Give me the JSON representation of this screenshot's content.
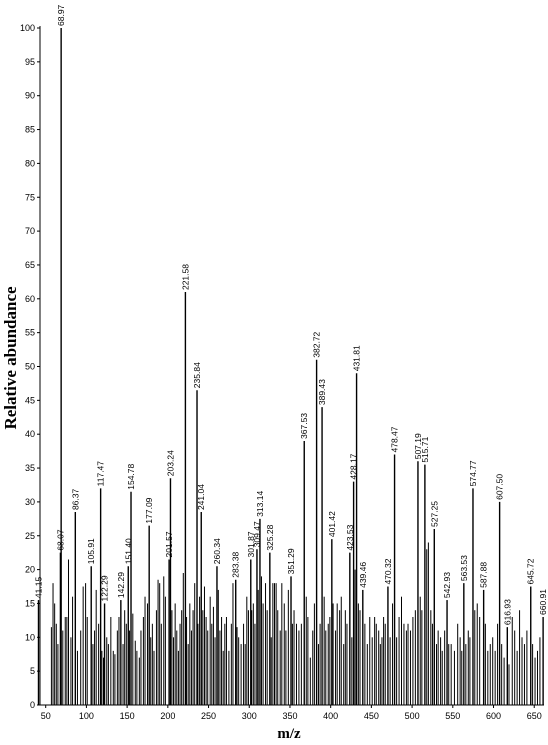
{
  "chart_data": {
    "type": "bar",
    "xlabel": "m/z",
    "ylabel": "Relative abundance",
    "xlim": [
      43,
      662
    ],
    "ylim": [
      0,
      100
    ],
    "x_ticks": [
      50,
      100,
      150,
      200,
      250,
      300,
      350,
      400,
      450,
      500,
      550,
      600,
      650
    ],
    "y_ticks": [
      0,
      5,
      10,
      15,
      20,
      25,
      30,
      35,
      40,
      45,
      50,
      55,
      60,
      65,
      70,
      75,
      80,
      85,
      90,
      95,
      100
    ],
    "x_tick_labels": [
      "50",
      "100",
      "150",
      "200",
      "250",
      "300",
      "350",
      "400",
      "450",
      "500",
      "550",
      "600",
      "650"
    ],
    "y_tick_labels": [
      "0",
      "5",
      "10",
      "15",
      "20",
      "25",
      "30",
      "35",
      "40",
      "45",
      "50",
      "55",
      "60",
      "65",
      "70",
      "75",
      "80",
      "85",
      "90",
      "95",
      "100"
    ],
    "grid": false,
    "labeled_peaks": [
      {
        "x": 41.15,
        "y": 15.5,
        "label": "41.15"
      },
      {
        "x": 68.07,
        "y": 22.5,
        "label": "68.07"
      },
      {
        "x": 68.97,
        "y": 100,
        "label": "68.97"
      },
      {
        "x": 86.37,
        "y": 28.5,
        "label": "86.37"
      },
      {
        "x": 105.91,
        "y": 20.5,
        "label": "105.91"
      },
      {
        "x": 117.47,
        "y": 32,
        "label": "117.47"
      },
      {
        "x": 122.29,
        "y": 15,
        "label": "122.29"
      },
      {
        "x": 142.29,
        "y": 15.5,
        "label": "142.29"
      },
      {
        "x": 151.4,
        "y": 20.5,
        "label": "151.40"
      },
      {
        "x": 154.78,
        "y": 31.5,
        "label": "154.78"
      },
      {
        "x": 177.09,
        "y": 26.5,
        "label": "177.09"
      },
      {
        "x": 201.57,
        "y": 21.5,
        "label": "201.57"
      },
      {
        "x": 203.24,
        "y": 33.5,
        "label": "203.24"
      },
      {
        "x": 221.58,
        "y": 61,
        "label": "221.58"
      },
      {
        "x": 235.84,
        "y": 46.5,
        "label": "235.84"
      },
      {
        "x": 241.04,
        "y": 28.5,
        "label": "241.04"
      },
      {
        "x": 260.34,
        "y": 20.5,
        "label": "260.34"
      },
      {
        "x": 283.38,
        "y": 18.5,
        "label": "283.38"
      },
      {
        "x": 301.87,
        "y": 21.5,
        "label": "301.87"
      },
      {
        "x": 309.47,
        "y": 23,
        "label": "309.47"
      },
      {
        "x": 313.14,
        "y": 27.5,
        "label": "313.14"
      },
      {
        "x": 325.28,
        "y": 22.5,
        "label": "325.28"
      },
      {
        "x": 351.29,
        "y": 19,
        "label": "351.29"
      },
      {
        "x": 367.53,
        "y": 39,
        "label": "367.53"
      },
      {
        "x": 382.72,
        "y": 51,
        "label": "382.72"
      },
      {
        "x": 389.43,
        "y": 44,
        "label": "389.43"
      },
      {
        "x": 401.42,
        "y": 24.5,
        "label": "401.42"
      },
      {
        "x": 423.53,
        "y": 22.5,
        "label": "423.53"
      },
      {
        "x": 428.17,
        "y": 33,
        "label": "428.17"
      },
      {
        "x": 431.81,
        "y": 49,
        "label": "431.81"
      },
      {
        "x": 439.46,
        "y": 17,
        "label": "439.46"
      },
      {
        "x": 470.32,
        "y": 17.5,
        "label": "470.32"
      },
      {
        "x": 478.47,
        "y": 37,
        "label": "478.47"
      },
      {
        "x": 507.19,
        "y": 36,
        "label": "507.19"
      },
      {
        "x": 515.71,
        "y": 35.5,
        "label": "515.71"
      },
      {
        "x": 527.25,
        "y": 26,
        "label": "527.25"
      },
      {
        "x": 542.93,
        "y": 15.5,
        "label": "542.93"
      },
      {
        "x": 563.53,
        "y": 18,
        "label": "563.53"
      },
      {
        "x": 574.77,
        "y": 32,
        "label": "574.77"
      },
      {
        "x": 587.88,
        "y": 17,
        "label": "587.88"
      },
      {
        "x": 607.5,
        "y": 30,
        "label": "607.50"
      },
      {
        "x": 616.93,
        "y": 11.5,
        "label": "616.93"
      },
      {
        "x": 645.72,
        "y": 17.5,
        "label": "645.72"
      },
      {
        "x": 660.91,
        "y": 13,
        "label": "660.91"
      }
    ],
    "minor_peaks": [
      [
        57,
        11.5
      ],
      [
        59,
        18
      ],
      [
        61,
        15
      ],
      [
        63,
        12
      ],
      [
        65,
        9
      ],
      [
        71,
        11
      ],
      [
        74,
        13
      ],
      [
        76,
        13
      ],
      [
        78,
        21.5
      ],
      [
        81,
        10
      ],
      [
        83,
        16
      ],
      [
        89,
        8
      ],
      [
        93,
        11
      ],
      [
        96,
        17.5
      ],
      [
        99,
        18
      ],
      [
        101,
        13
      ],
      [
        108,
        9
      ],
      [
        110,
        11
      ],
      [
        112,
        17
      ],
      [
        115,
        12
      ],
      [
        119,
        8
      ],
      [
        121,
        7
      ],
      [
        125,
        10
      ],
      [
        127,
        9
      ],
      [
        130,
        13
      ],
      [
        133,
        8
      ],
      [
        135,
        7.5
      ],
      [
        138,
        11
      ],
      [
        140,
        13
      ],
      [
        145,
        9
      ],
      [
        147,
        14
      ],
      [
        149,
        12
      ],
      [
        153,
        11
      ],
      [
        157,
        13.5
      ],
      [
        160,
        9.5
      ],
      [
        162,
        8
      ],
      [
        165,
        7
      ],
      [
        167,
        11
      ],
      [
        170,
        13
      ],
      [
        172,
        16
      ],
      [
        175,
        15
      ],
      [
        179,
        10
      ],
      [
        181,
        12
      ],
      [
        183,
        8
      ],
      [
        186,
        14
      ],
      [
        188,
        18.5
      ],
      [
        190,
        18
      ],
      [
        192,
        12
      ],
      [
        195,
        19
      ],
      [
        197,
        16
      ],
      [
        205,
        14
      ],
      [
        207,
        10
      ],
      [
        209,
        15
      ],
      [
        211,
        11
      ],
      [
        213,
        8
      ],
      [
        215,
        12
      ],
      [
        217,
        14
      ],
      [
        219,
        19.5
      ],
      [
        223,
        13
      ],
      [
        225,
        9
      ],
      [
        227,
        15
      ],
      [
        229,
        11
      ],
      [
        231,
        14
      ],
      [
        233,
        18
      ],
      [
        237,
        12
      ],
      [
        239,
        16
      ],
      [
        243,
        14
      ],
      [
        245,
        17.5
      ],
      [
        247,
        13
      ],
      [
        249,
        11
      ],
      [
        252,
        16
      ],
      [
        254,
        12
      ],
      [
        256,
        14.5
      ],
      [
        258,
        10
      ],
      [
        262,
        17
      ],
      [
        264,
        11
      ],
      [
        266,
        13
      ],
      [
        268,
        8
      ],
      [
        270,
        12
      ],
      [
        272,
        13
      ],
      [
        275,
        8
      ],
      [
        278,
        12
      ],
      [
        280,
        18
      ],
      [
        285,
        11.5
      ],
      [
        287,
        10
      ],
      [
        290,
        9
      ],
      [
        293,
        12
      ],
      [
        295,
        9
      ],
      [
        297,
        16
      ],
      [
        299,
        14
      ],
      [
        303,
        14
      ],
      [
        305,
        15
      ],
      [
        307,
        12
      ],
      [
        311,
        17
      ],
      [
        315,
        19
      ],
      [
        317,
        15
      ],
      [
        320,
        18
      ],
      [
        322,
        14
      ],
      [
        327,
        10
      ],
      [
        329,
        18
      ],
      [
        331,
        18
      ],
      [
        333,
        18
      ],
      [
        335,
        14
      ],
      [
        338,
        11
      ],
      [
        340,
        18
      ],
      [
        343,
        15
      ],
      [
        345,
        11
      ],
      [
        348,
        17
      ],
      [
        353,
        12
      ],
      [
        355,
        14
      ],
      [
        358,
        12
      ],
      [
        361,
        11
      ],
      [
        364,
        12
      ],
      [
        370,
        16
      ],
      [
        372,
        13
      ],
      [
        375,
        7
      ],
      [
        378,
        11
      ],
      [
        380,
        15
      ],
      [
        385,
        9
      ],
      [
        387,
        12
      ],
      [
        392,
        16
      ],
      [
        394,
        11
      ],
      [
        397,
        12
      ],
      [
        399,
        13
      ],
      [
        403,
        15
      ],
      [
        406,
        11
      ],
      [
        408,
        15
      ],
      [
        411,
        14
      ],
      [
        413,
        16
      ],
      [
        416,
        9
      ],
      [
        418,
        14
      ],
      [
        420,
        12
      ],
      [
        426,
        10
      ],
      [
        430,
        20
      ],
      [
        434,
        15
      ],
      [
        436,
        14
      ],
      [
        442,
        12
      ],
      [
        445,
        9
      ],
      [
        448,
        13
      ],
      [
        451,
        10
      ],
      [
        454,
        13
      ],
      [
        456,
        12
      ],
      [
        459,
        11
      ],
      [
        461,
        9
      ],
      [
        463,
        10
      ],
      [
        465,
        13
      ],
      [
        467,
        12
      ],
      [
        473,
        10
      ],
      [
        476,
        15
      ],
      [
        481,
        10
      ],
      [
        484,
        13
      ],
      [
        487,
        16
      ],
      [
        490,
        12
      ],
      [
        493,
        11
      ],
      [
        495,
        12
      ],
      [
        498,
        11
      ],
      [
        501,
        13
      ],
      [
        504,
        14
      ],
      [
        510,
        16
      ],
      [
        512,
        14
      ],
      [
        518,
        23
      ],
      [
        520,
        24
      ],
      [
        523,
        14
      ],
      [
        525,
        12
      ],
      [
        530,
        9
      ],
      [
        532,
        11
      ],
      [
        535,
        10
      ],
      [
        537,
        8
      ],
      [
        540,
        11
      ],
      [
        545,
        9
      ],
      [
        548,
        9
      ],
      [
        552,
        8
      ],
      [
        556,
        12
      ],
      [
        559,
        10
      ],
      [
        561,
        8
      ],
      [
        566,
        9
      ],
      [
        569,
        11
      ],
      [
        571,
        10
      ],
      [
        577,
        14
      ],
      [
        580,
        15
      ],
      [
        583,
        13
      ],
      [
        590,
        12
      ],
      [
        593,
        8
      ],
      [
        596,
        9
      ],
      [
        599,
        10
      ],
      [
        602,
        8
      ],
      [
        605,
        12
      ],
      [
        610,
        9
      ],
      [
        613,
        7
      ],
      [
        619,
        6
      ],
      [
        623,
        13
      ],
      [
        626,
        11
      ],
      [
        629,
        8
      ],
      [
        632,
        14
      ],
      [
        635,
        10
      ],
      [
        638,
        9
      ],
      [
        641,
        11
      ],
      [
        648,
        9
      ],
      [
        651,
        7
      ],
      [
        654,
        8
      ],
      [
        657,
        10
      ]
    ]
  }
}
